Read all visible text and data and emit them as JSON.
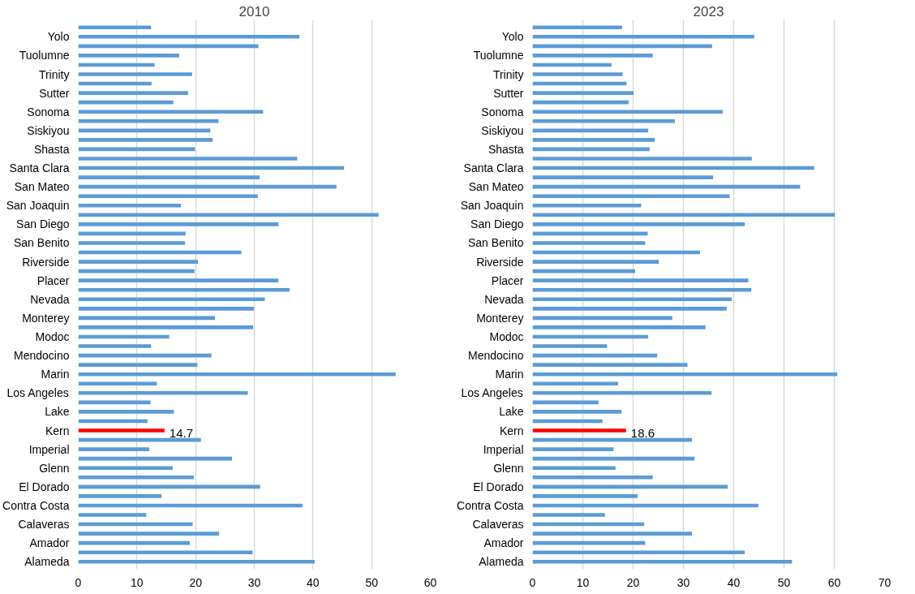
{
  "chart_data": [
    {
      "type": "bar",
      "orientation": "horizontal",
      "title": "2010",
      "categories": [
        null,
        "Yolo",
        null,
        "Tuolumne",
        null,
        "Trinity",
        null,
        "Sutter",
        null,
        "Sonoma",
        null,
        "Siskiyou",
        null,
        "Shasta",
        null,
        "Santa Clara",
        null,
        "San Mateo",
        null,
        "San Joaquin",
        null,
        "San Diego",
        null,
        "San Benito",
        null,
        "Riverside",
        null,
        "Placer",
        null,
        "Nevada",
        null,
        "Monterey",
        null,
        "Modoc",
        null,
        "Mendocino",
        null,
        "Marin",
        null,
        "Los Angeles",
        null,
        "Lake",
        null,
        "Kern",
        null,
        "Imperial",
        null,
        "Glenn",
        null,
        "El Dorado",
        null,
        "Contra Costa",
        null,
        "Calaveras",
        null,
        "Amador",
        null,
        "Alameda"
      ],
      "values": [
        12.4,
        37.7,
        30.7,
        17.2,
        13.0,
        19.4,
        12.5,
        18.7,
        16.2,
        31.5,
        23.9,
        22.5,
        22.9,
        19.9,
        37.3,
        45.3,
        30.9,
        44.0,
        30.6,
        17.5,
        51.2,
        34.1,
        18.3,
        18.2,
        27.8,
        20.4,
        19.8,
        34.1,
        36.0,
        31.8,
        29.9,
        23.3,
        29.8,
        15.5,
        12.4,
        22.7,
        20.3,
        54.1,
        13.4,
        28.9,
        12.3,
        16.3,
        11.8,
        14.7,
        20.9,
        12.1,
        26.2,
        16.1,
        19.7,
        31.0,
        14.2,
        38.2,
        11.6,
        19.5,
        24.0,
        19.0,
        29.7,
        40.3
      ],
      "colors": [
        "#5b9bd5",
        "#5b9bd5",
        "#5b9bd5",
        "#5b9bd5",
        "#5b9bd5",
        "#5b9bd5",
        "#5b9bd5",
        "#5b9bd5",
        "#5b9bd5",
        "#5b9bd5",
        "#5b9bd5",
        "#5b9bd5",
        "#5b9bd5",
        "#5b9bd5",
        "#5b9bd5",
        "#5b9bd5",
        "#5b9bd5",
        "#5b9bd5",
        "#5b9bd5",
        "#5b9bd5",
        "#5b9bd5",
        "#5b9bd5",
        "#5b9bd5",
        "#5b9bd5",
        "#5b9bd5",
        "#5b9bd5",
        "#5b9bd5",
        "#5b9bd5",
        "#5b9bd5",
        "#5b9bd5",
        "#5b9bd5",
        "#5b9bd5",
        "#5b9bd5",
        "#5b9bd5",
        "#5b9bd5",
        "#5b9bd5",
        "#5b9bd5",
        "#5b9bd5",
        "#5b9bd5",
        "#5b9bd5",
        "#5b9bd5",
        "#5b9bd5",
        "#5b9bd5",
        "#ff0000",
        "#5b9bd5",
        "#5b9bd5",
        "#5b9bd5",
        "#5b9bd5",
        "#5b9bd5",
        "#5b9bd5",
        "#5b9bd5",
        "#5b9bd5",
        "#5b9bd5",
        "#5b9bd5",
        "#5b9bd5",
        "#5b9bd5",
        "#5b9bd5",
        "#5b9bd5"
      ],
      "value_labels": [
        null,
        null,
        null,
        null,
        null,
        null,
        null,
        null,
        null,
        null,
        null,
        null,
        null,
        null,
        null,
        null,
        null,
        null,
        null,
        null,
        null,
        null,
        null,
        null,
        null,
        null,
        null,
        null,
        null,
        null,
        null,
        null,
        null,
        null,
        null,
        null,
        null,
        null,
        null,
        null,
        null,
        null,
        null,
        "14.7",
        null,
        null,
        null,
        null,
        null,
        null,
        null,
        null,
        null,
        null,
        null,
        null,
        null,
        null
      ],
      "xlim": [
        0,
        60
      ],
      "xticks": [
        0,
        10,
        20,
        30,
        40,
        50,
        60
      ],
      "grid": "x"
    },
    {
      "type": "bar",
      "orientation": "horizontal",
      "title": "2023",
      "categories": [
        null,
        "Yolo",
        null,
        "Tuolumne",
        null,
        "Trinity",
        null,
        "Sutter",
        null,
        "Sonoma",
        null,
        "Siskiyou",
        null,
        "Shasta",
        null,
        "Santa Clara",
        null,
        "San Mateo",
        null,
        "San Joaquin",
        null,
        "San Diego",
        null,
        "San Benito",
        null,
        "Riverside",
        null,
        "Placer",
        null,
        "Nevada",
        null,
        "Monterey",
        null,
        "Modoc",
        null,
        "Mendocino",
        null,
        "Marin",
        null,
        "Los Angeles",
        null,
        "Lake",
        null,
        "Kern",
        null,
        "Imperial",
        null,
        "Glenn",
        null,
        "El Dorado",
        null,
        "Contra Costa",
        null,
        "Calaveras",
        null,
        "Amador",
        null,
        "Alameda"
      ],
      "values": [
        17.8,
        44.1,
        35.7,
        23.9,
        15.7,
        17.9,
        18.7,
        20.1,
        19.1,
        37.8,
        28.3,
        23.0,
        24.3,
        23.3,
        43.6,
        56.0,
        35.9,
        53.2,
        39.2,
        21.6,
        60.1,
        42.2,
        22.9,
        22.4,
        33.3,
        25.1,
        20.4,
        42.9,
        43.5,
        39.6,
        38.6,
        27.8,
        34.4,
        23.0,
        14.8,
        24.8,
        30.8,
        60.6,
        17.0,
        35.6,
        13.1,
        17.7,
        13.9,
        18.6,
        31.7,
        16.1,
        32.2,
        16.5,
        23.9,
        38.8,
        20.9,
        44.9,
        14.4,
        22.2,
        31.7,
        22.4,
        42.2,
        51.6
      ],
      "colors": [
        "#5b9bd5",
        "#5b9bd5",
        "#5b9bd5",
        "#5b9bd5",
        "#5b9bd5",
        "#5b9bd5",
        "#5b9bd5",
        "#5b9bd5",
        "#5b9bd5",
        "#5b9bd5",
        "#5b9bd5",
        "#5b9bd5",
        "#5b9bd5",
        "#5b9bd5",
        "#5b9bd5",
        "#5b9bd5",
        "#5b9bd5",
        "#5b9bd5",
        "#5b9bd5",
        "#5b9bd5",
        "#5b9bd5",
        "#5b9bd5",
        "#5b9bd5",
        "#5b9bd5",
        "#5b9bd5",
        "#5b9bd5",
        "#5b9bd5",
        "#5b9bd5",
        "#5b9bd5",
        "#5b9bd5",
        "#5b9bd5",
        "#5b9bd5",
        "#5b9bd5",
        "#5b9bd5",
        "#5b9bd5",
        "#5b9bd5",
        "#5b9bd5",
        "#5b9bd5",
        "#5b9bd5",
        "#5b9bd5",
        "#5b9bd5",
        "#5b9bd5",
        "#5b9bd5",
        "#ff0000",
        "#5b9bd5",
        "#5b9bd5",
        "#5b9bd5",
        "#5b9bd5",
        "#5b9bd5",
        "#5b9bd5",
        "#5b9bd5",
        "#5b9bd5",
        "#5b9bd5",
        "#5b9bd5",
        "#5b9bd5",
        "#5b9bd5",
        "#5b9bd5",
        "#5b9bd5"
      ],
      "value_labels": [
        null,
        null,
        null,
        null,
        null,
        null,
        null,
        null,
        null,
        null,
        null,
        null,
        null,
        null,
        null,
        null,
        null,
        null,
        null,
        null,
        null,
        null,
        null,
        null,
        null,
        null,
        null,
        null,
        null,
        null,
        null,
        null,
        null,
        null,
        null,
        null,
        null,
        null,
        null,
        null,
        null,
        null,
        null,
        "18.6",
        null,
        null,
        null,
        null,
        null,
        null,
        null,
        null,
        null,
        null,
        null,
        null,
        null,
        null
      ],
      "xlim": [
        0,
        70
      ],
      "xticks": [
        0,
        10,
        20,
        30,
        40,
        50,
        60,
        70
      ],
      "grid": "x"
    }
  ]
}
